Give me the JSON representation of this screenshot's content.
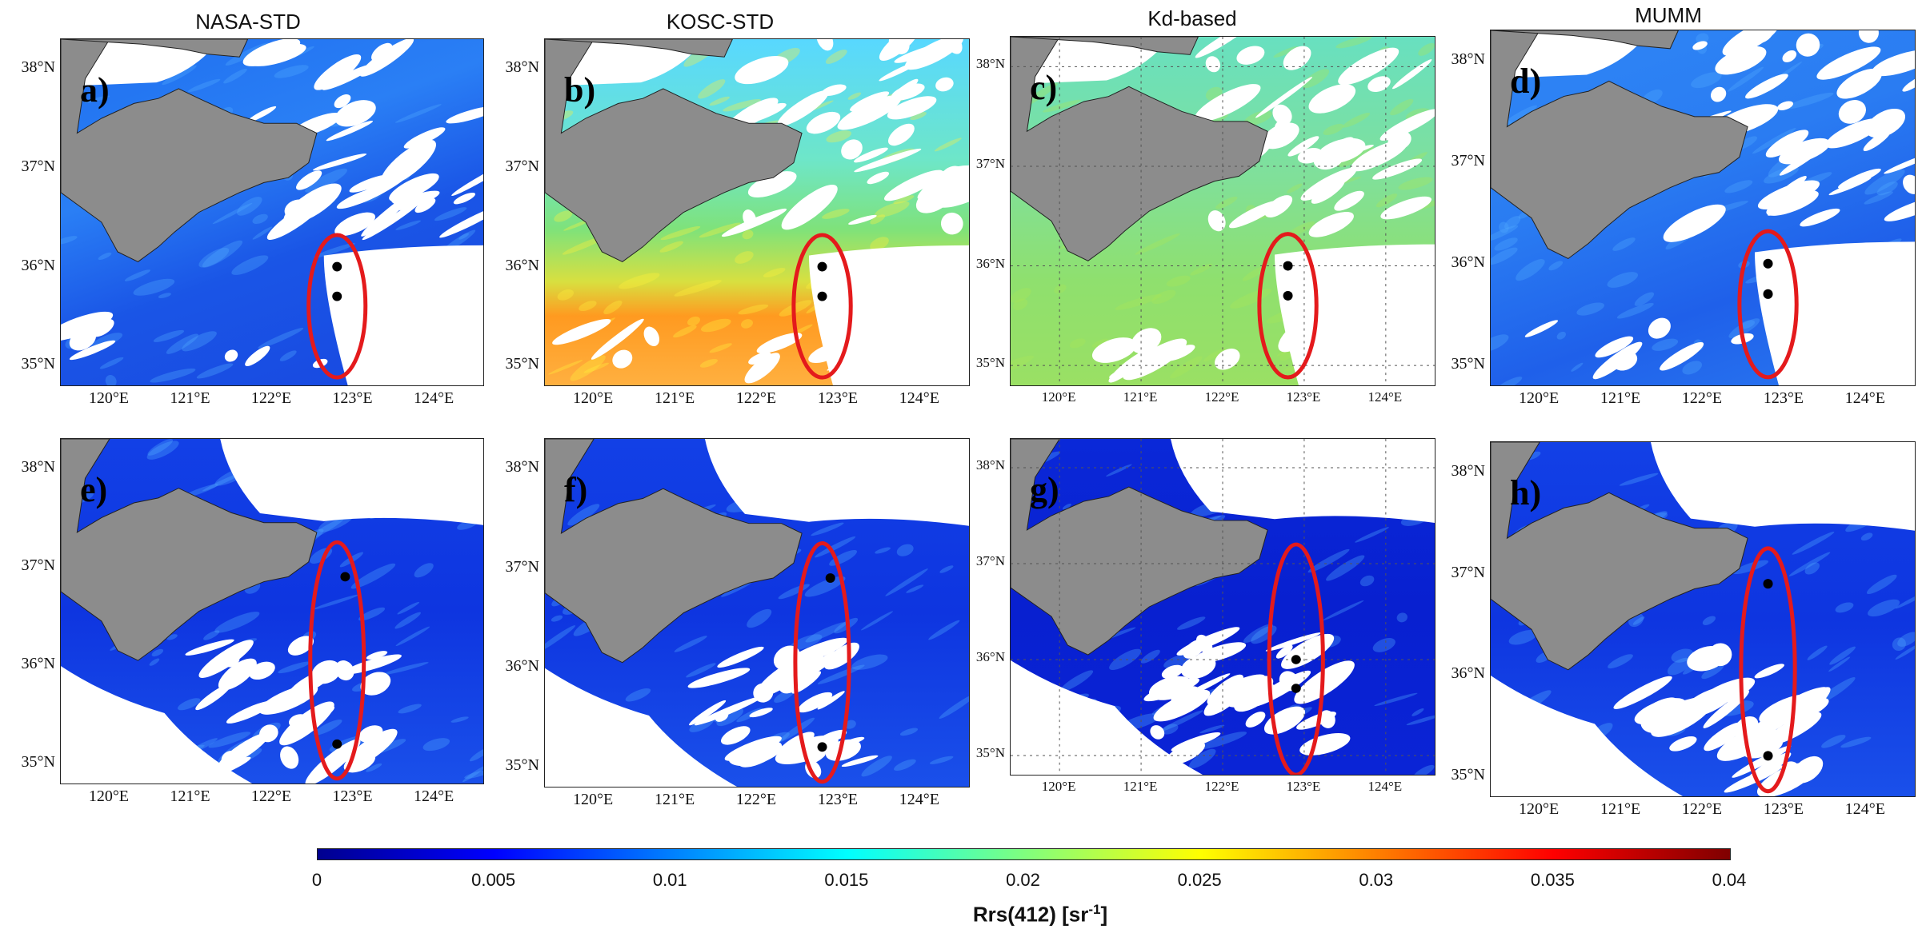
{
  "column_titles": [
    "NASA-STD",
    "KOSC-STD",
    "Kd-based",
    "MUMM"
  ],
  "panels": [
    {
      "label": "a)",
      "row": 0,
      "col": 0,
      "style": "nasa",
      "dots": [
        [
          122.8,
          36.0
        ],
        [
          122.8,
          35.7
        ]
      ],
      "ellipse": {
        "lon": 122.8,
        "lat": 35.6,
        "rx": 0.35,
        "ry": 0.72
      }
    },
    {
      "label": "b)",
      "row": 0,
      "col": 1,
      "style": "kosc",
      "dots": [
        [
          122.8,
          36.0
        ],
        [
          122.8,
          35.7
        ]
      ],
      "ellipse": {
        "lon": 122.8,
        "lat": 35.6,
        "rx": 0.35,
        "ry": 0.72
      }
    },
    {
      "label": "c)",
      "row": 0,
      "col": 2,
      "style": "kd",
      "dots": [
        [
          122.8,
          36.0
        ],
        [
          122.8,
          35.7
        ]
      ],
      "ellipse": {
        "lon": 122.8,
        "lat": 35.6,
        "rx": 0.35,
        "ry": 0.72
      }
    },
    {
      "label": "d)",
      "row": 0,
      "col": 3,
      "style": "mumm",
      "dots": [
        [
          122.8,
          36.0
        ],
        [
          122.8,
          35.7
        ]
      ],
      "ellipse": {
        "lon": 122.8,
        "lat": 35.6,
        "rx": 0.35,
        "ry": 0.72
      }
    },
    {
      "label": "e)",
      "row": 1,
      "col": 0,
      "style": "deep",
      "dots": [
        [
          122.9,
          36.9
        ],
        [
          122.8,
          35.2
        ]
      ],
      "ellipse": {
        "lon": 122.8,
        "lat": 36.05,
        "rx": 0.33,
        "ry": 1.2
      }
    },
    {
      "label": "f)",
      "row": 1,
      "col": 1,
      "style": "deep",
      "dots": [
        [
          122.9,
          36.9
        ],
        [
          122.8,
          35.2
        ]
      ],
      "ellipse": {
        "lon": 122.8,
        "lat": 36.05,
        "rx": 0.33,
        "ry": 1.2
      }
    },
    {
      "label": "g)",
      "row": 1,
      "col": 2,
      "style": "deeper",
      "dots": [
        [
          122.9,
          36.0
        ],
        [
          122.9,
          35.7
        ]
      ],
      "ellipse": {
        "lon": 122.9,
        "lat": 36.0,
        "rx": 0.33,
        "ry": 1.2
      }
    },
    {
      "label": "h)",
      "row": 1,
      "col": 3,
      "style": "deep",
      "dots": [
        [
          122.8,
          36.9
        ],
        [
          122.8,
          35.2
        ]
      ],
      "ellipse": {
        "lon": 122.8,
        "lat": 36.05,
        "rx": 0.33,
        "ry": 1.2
      }
    }
  ],
  "axes": {
    "lon_ticks": [
      "120°E",
      "121°E",
      "122°E",
      "123°E",
      "124°E"
    ],
    "lon_values": [
      120,
      121,
      122,
      123,
      124
    ],
    "lat_ticks": [
      "38°N",
      "37°N",
      "36°N",
      "35°N"
    ],
    "lat_values": [
      38,
      37,
      36,
      35
    ],
    "lon_range": [
      119.4,
      124.6
    ],
    "lat_range": [
      34.8,
      38.3
    ]
  },
  "colorbar": {
    "ticks": [
      "0",
      "0.005",
      "0.01",
      "0.015",
      "0.02",
      "0.025",
      "0.03",
      "0.035",
      "0.04"
    ],
    "label_main": "Rrs(412) [sr",
    "label_sup": "-1",
    "label_end": "]",
    "colormap": "jet"
  },
  "colors": {
    "land": "#8c8c8c",
    "ellipse": "#e41a1c",
    "dot": "#000000",
    "cloud": "#ffffff"
  }
}
